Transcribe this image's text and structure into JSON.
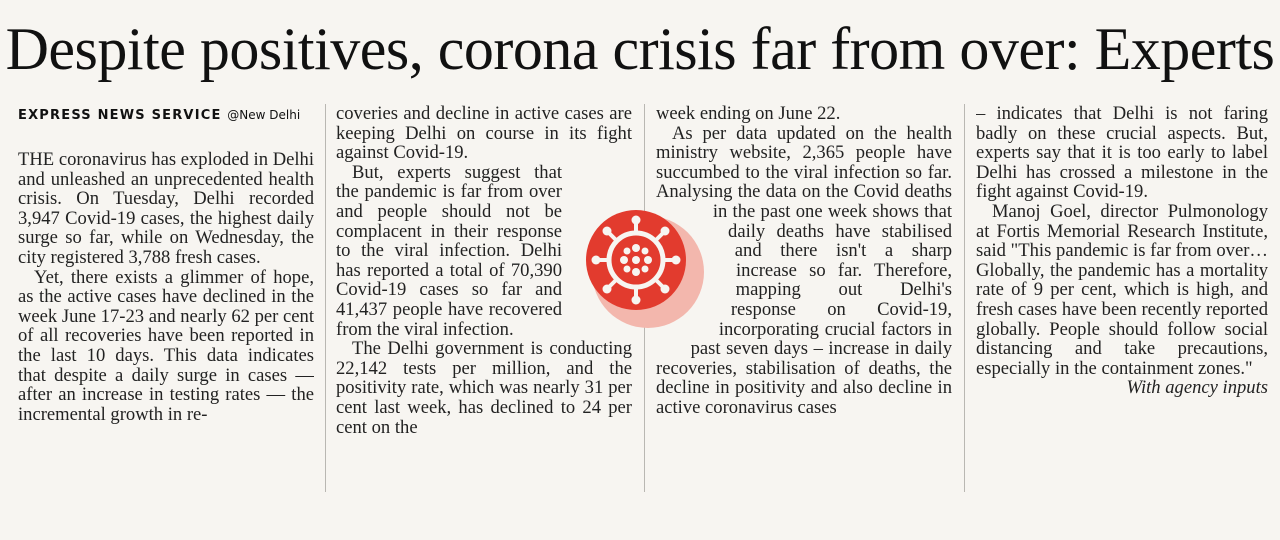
{
  "article": {
    "headline": "Despite positives, corona crisis far from over: Experts",
    "byline": {
      "agency": "EXPRESS NEWS SERVICE",
      "location": "@New Delhi"
    },
    "col1": {
      "p1": "THE coronavirus has exploded in Delhi and unleashed an unprecedented health crisis. On Tuesday, Delhi recorded 3,947 Covid-19 cases, the highest daily surge so far, while on Wednesday, the city registered 3,788 fresh cases.",
      "p2": "Yet, there exists a glimmer of hope, as the active cases have declined in the week June 17-23 and nearly 62 per cent of all recoveries have been reported in the last 10 days. This data indicates that despite a daily surge in cases — after an increase in testing rates — the incremental growth in re-"
    },
    "col2": {
      "p1": "coveries and decline in active cases are keeping Delhi on course in its fight against Covid-19.",
      "p2": "But, experts suggest that the pandemic is far from over and people should not be complacent in their response to the viral infection. Delhi has reported a total of 70,390 Covid-19 cases so far and 41,437 people have recovered from the viral infection.",
      "p3": "The Delhi government is conducting 22,142 tests per million, and the positivity rate, which was nearly 31 per cent last week, has declined to 24 per cent on the"
    },
    "col3": {
      "p1": "week ending on June 22.",
      "p2": "As per data updated on the health ministry website, 2,365 people have succumbed to the viral infection so far. Analysing the data on the Covid deaths in the past one week shows that daily deaths have stabilised and there isn't a sharp increase so far. Therefore, mapping out Delhi's response on Covid-19, incorporating crucial factors in past seven days – increase in daily recoveries, stabilisation of deaths, the decline in positivity and also decline in active coronavirus cases"
    },
    "col4": {
      "p1": "– indicates that Delhi is not faring badly on these crucial aspects. But, experts say that it is too early to label Delhi has crossed a milestone in the fight against Covid-19.",
      "p2": "Manoj Goel, director Pulmonology at Fortis Memorial Research Institute, said \"This pandemic is far from over… Globally, the pandemic has a mortality rate of 9 per cent, which is high, and fresh cases have been recently reported globally. People should follow social distancing and take precautions, especially in the containment zones.\"",
      "credit": "With agency inputs"
    }
  },
  "graphic": {
    "icon": "coronavirus-icon",
    "color": "#e23b2e",
    "shadow": "#f3b7ad"
  }
}
